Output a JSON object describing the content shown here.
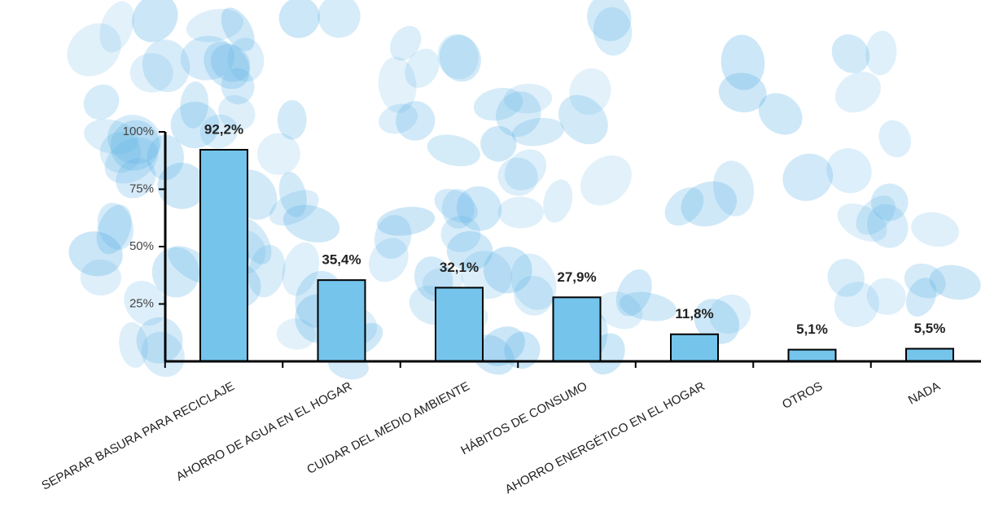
{
  "chart_data": {
    "type": "bar",
    "categories": [
      "SEPARAR BASURA PARA RECICLAJE",
      "AHORRO DE AGUA EN EL HOGAR",
      "CUIDAR DEL MEDIO AMBIENTE",
      "HÁBITOS DE CONSUMO",
      "AHORRO ENERGÉTICO EN EL HOGAR",
      "OTROS",
      "NADA"
    ],
    "values": [
      92.2,
      35.4,
      32.1,
      27.9,
      11.8,
      5.1,
      5.5
    ],
    "value_labels": [
      "92,2%",
      "35,4%",
      "32,1%",
      "27,9%",
      "11,8%",
      "5,1%",
      "5,5%"
    ],
    "color": "#74c4ec",
    "ylim": [
      0,
      100
    ],
    "yticks": [
      {
        "value": 25,
        "label": "25%"
      },
      {
        "value": 50,
        "label": "50%"
      },
      {
        "value": 75,
        "label": "75%"
      },
      {
        "value": 100,
        "label": "100%"
      }
    ]
  }
}
